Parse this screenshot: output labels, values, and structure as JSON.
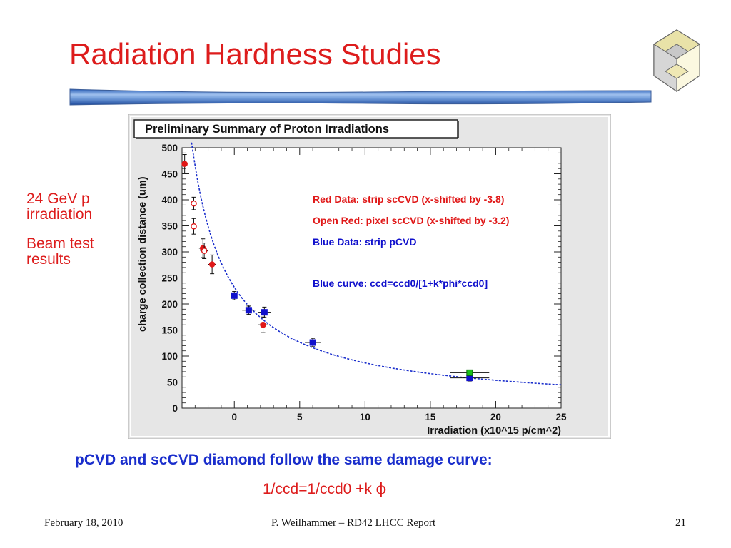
{
  "slide": {
    "title": "Radiation Hardness Studies",
    "side_note_1": "24 GeV p irradiation",
    "side_note_2": "Beam test results",
    "summary": "pCVD and scCVD diamond follow the same damage curve:",
    "formula_prefix": "1/ccd=1/ccd0 +k ",
    "formula_symbol": "ϕ",
    "footer_date": "February 18, 2010",
    "footer_author": "P. Weilhammer – RD42 LHCC Report",
    "page_number": "21"
  },
  "colors": {
    "title_red": "#dd1c1c",
    "summary_blue": "#1a2ecc",
    "red_series": "#e01818",
    "blue_series": "#1010cc",
    "green_point": "#18c018",
    "chart_bg": "#e6e6e6"
  },
  "chart_data": {
    "type": "scatter",
    "title": "Preliminary Summary of Proton Irradiations",
    "xlabel": "Irradiation (x10^15 p/cm^2)",
    "ylabel": "charge collection distance (um)",
    "xlim": [
      -4,
      25
    ],
    "ylim": [
      0,
      500
    ],
    "xticks": [
      0,
      5,
      10,
      15,
      20,
      25
    ],
    "yticks": [
      0,
      50,
      100,
      150,
      200,
      250,
      300,
      350,
      400,
      450,
      500
    ],
    "grid": false,
    "annotations": [
      "Red Data: strip scCVD  (x-shifted by -3.8)",
      "Open Red: pixel scCVD (x-shifted by -3.2)",
      "Blue Data: strip pCVD",
      "Blue curve: ccd=ccd0/[1+k*phi*ccd0]"
    ],
    "series": [
      {
        "points": [
          {
            "x": -3.8,
            "y": 469,
            "xerr": 0.2,
            "yerr": 18
          },
          {
            "x": -2.4,
            "y": 307,
            "xerr": 0.3,
            "yerr": 18
          },
          {
            "x": -1.7,
            "y": 276,
            "xerr": 0.3,
            "yerr": 18
          },
          {
            "x": 2.2,
            "y": 160,
            "xerr": 0.4,
            "yerr": 15
          }
        ]
      },
      {
        "points": [
          {
            "x": -3.1,
            "y": 393,
            "xerr": 0.2,
            "yerr": 12
          },
          {
            "x": -3.1,
            "y": 349,
            "xerr": 0.2,
            "yerr": 15
          },
          {
            "x": -2.3,
            "y": 302,
            "xerr": 0.3,
            "yerr": 15
          }
        ]
      },
      {
        "points": [
          {
            "x": 0.0,
            "y": 216,
            "xerr": 0.2,
            "yerr": 8
          },
          {
            "x": 1.1,
            "y": 188,
            "xerr": 0.5,
            "yerr": 8
          },
          {
            "x": 2.3,
            "y": 184,
            "xerr": 0.5,
            "yerr": 10
          },
          {
            "x": 6.0,
            "y": 126,
            "xerr": 0.6,
            "yerr": 8
          },
          {
            "x": 18.0,
            "y": 58,
            "xerr": 1.5,
            "yerr": 6
          }
        ]
      },
      {
        "points": [
          {
            "x": 18.0,
            "y": 68,
            "xerr": 1.5,
            "yerr": 5
          }
        ]
      }
    ],
    "curve": {
      "ccd0": 700,
      "k": 0.00072
    }
  }
}
